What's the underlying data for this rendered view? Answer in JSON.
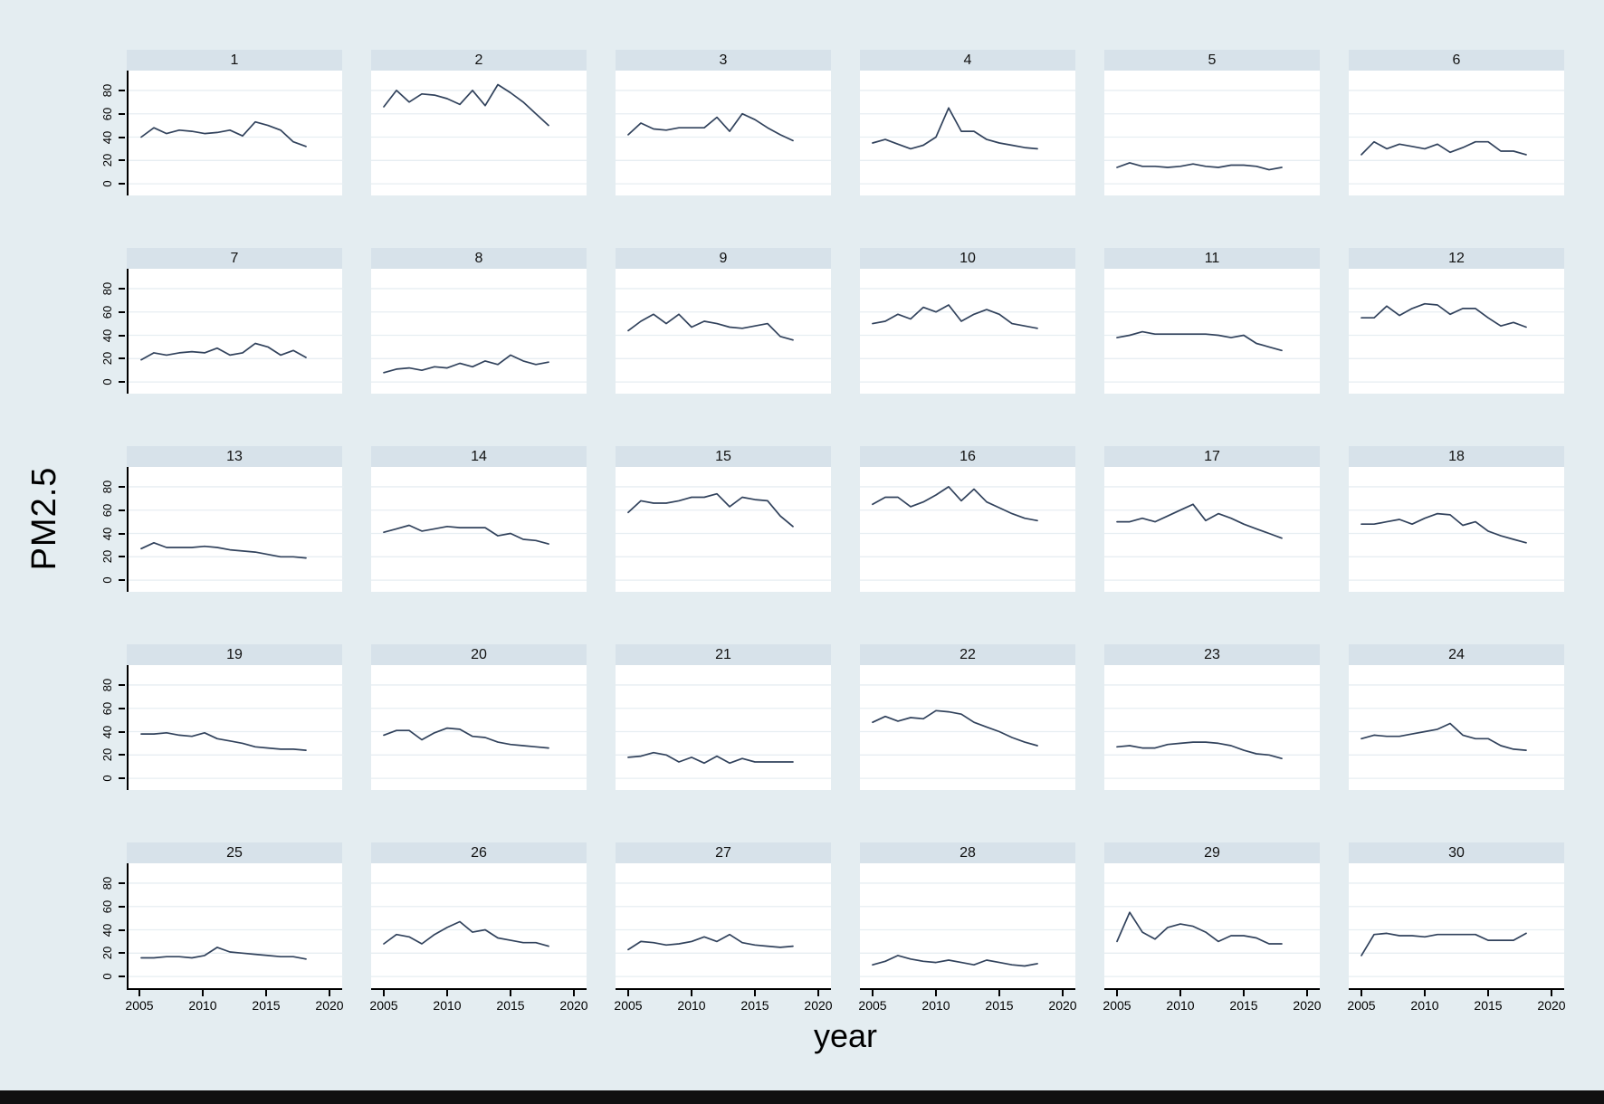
{
  "colors": {
    "background": "#e4edf1",
    "panel_header": "#d7e2ea",
    "plot_background": "#ffffff",
    "gridline": "#e7eef2",
    "line": "#31425c",
    "axis": "#000000",
    "bottom_bar": "#101010"
  },
  "chart_data": {
    "type": "line",
    "layout": "small-multiples grid, 5 rows x 6 columns, shared axes",
    "title": "",
    "xlabel": "year",
    "ylabel": "PM2.5",
    "x": [
      2005,
      2006,
      2007,
      2008,
      2009,
      2010,
      2011,
      2012,
      2013,
      2014,
      2015,
      2016,
      2017,
      2018
    ],
    "x_ticks": [
      2005,
      2010,
      2015,
      2020
    ],
    "y_ticks": [
      0,
      20,
      40,
      60,
      80
    ],
    "xlim": [
      2004,
      2021
    ],
    "ylim": [
      0,
      90
    ],
    "grid": true,
    "legend": "none",
    "panels": [
      {
        "label": "1",
        "values": [
          40,
          48,
          43,
          46,
          45,
          43,
          44,
          46,
          41,
          53,
          50,
          46,
          36,
          32
        ]
      },
      {
        "label": "2",
        "values": [
          66,
          80,
          70,
          77,
          76,
          73,
          68,
          80,
          67,
          85,
          78,
          70,
          60,
          50
        ]
      },
      {
        "label": "3",
        "values": [
          42,
          52,
          47,
          46,
          48,
          48,
          48,
          57,
          45,
          60,
          55,
          48,
          42,
          37
        ]
      },
      {
        "label": "4",
        "values": [
          35,
          38,
          34,
          30,
          33,
          40,
          65,
          45,
          45,
          38,
          35,
          33,
          31,
          30
        ]
      },
      {
        "label": "5",
        "values": [
          14,
          18,
          15,
          15,
          14,
          15,
          17,
          15,
          14,
          16,
          16,
          15,
          12,
          14
        ]
      },
      {
        "label": "6",
        "values": [
          25,
          36,
          30,
          34,
          32,
          30,
          34,
          27,
          31,
          36,
          36,
          28,
          28,
          25
        ]
      },
      {
        "label": "7",
        "values": [
          19,
          25,
          23,
          25,
          26,
          25,
          29,
          23,
          25,
          33,
          30,
          23,
          27,
          21
        ]
      },
      {
        "label": "8",
        "values": [
          8,
          11,
          12,
          10,
          13,
          12,
          16,
          13,
          18,
          15,
          23,
          18,
          15,
          17
        ]
      },
      {
        "label": "9",
        "values": [
          44,
          52,
          58,
          50,
          58,
          47,
          52,
          50,
          47,
          46,
          48,
          50,
          39,
          36
        ]
      },
      {
        "label": "10",
        "values": [
          50,
          52,
          58,
          54,
          64,
          60,
          66,
          52,
          58,
          62,
          58,
          50,
          48,
          46
        ]
      },
      {
        "label": "11",
        "values": [
          38,
          40,
          43,
          41,
          41,
          41,
          41,
          41,
          40,
          38,
          40,
          33,
          30,
          27
        ]
      },
      {
        "label": "12",
        "values": [
          55,
          55,
          65,
          57,
          63,
          67,
          66,
          58,
          63,
          63,
          55,
          48,
          51,
          47
        ]
      },
      {
        "label": "13",
        "values": [
          27,
          32,
          28,
          28,
          28,
          29,
          28,
          26,
          25,
          24,
          22,
          20,
          20,
          19
        ]
      },
      {
        "label": "14",
        "values": [
          41,
          44,
          47,
          42,
          44,
          46,
          45,
          45,
          45,
          38,
          40,
          35,
          34,
          31
        ]
      },
      {
        "label": "15",
        "values": [
          58,
          68,
          66,
          66,
          68,
          71,
          71,
          74,
          63,
          71,
          69,
          68,
          55,
          46
        ]
      },
      {
        "label": "16",
        "values": [
          65,
          71,
          71,
          63,
          67,
          73,
          80,
          68,
          78,
          67,
          62,
          57,
          53,
          51
        ]
      },
      {
        "label": "17",
        "values": [
          50,
          50,
          53,
          50,
          55,
          60,
          65,
          51,
          57,
          53,
          48,
          44,
          40,
          36
        ]
      },
      {
        "label": "18",
        "values": [
          48,
          48,
          50,
          52,
          48,
          53,
          57,
          56,
          47,
          50,
          42,
          38,
          35,
          32
        ]
      },
      {
        "label": "19",
        "values": [
          38,
          38,
          39,
          37,
          36,
          39,
          34,
          32,
          30,
          27,
          26,
          25,
          25,
          24
        ]
      },
      {
        "label": "20",
        "values": [
          37,
          41,
          41,
          33,
          39,
          43,
          42,
          36,
          35,
          31,
          29,
          28,
          27,
          26
        ]
      },
      {
        "label": "21",
        "values": [
          18,
          19,
          22,
          20,
          14,
          18,
          13,
          19,
          13,
          17,
          14,
          14,
          14,
          14
        ]
      },
      {
        "label": "22",
        "values": [
          48,
          53,
          49,
          52,
          51,
          58,
          57,
          55,
          48,
          44,
          40,
          35,
          31,
          28
        ]
      },
      {
        "label": "23",
        "values": [
          27,
          28,
          26,
          26,
          29,
          30,
          31,
          31,
          30,
          28,
          24,
          21,
          20,
          17
        ]
      },
      {
        "label": "24",
        "values": [
          34,
          37,
          36,
          36,
          38,
          40,
          42,
          47,
          37,
          34,
          34,
          28,
          25,
          24
        ]
      },
      {
        "label": "25",
        "values": [
          16,
          16,
          17,
          17,
          16,
          18,
          25,
          21,
          20,
          19,
          18,
          17,
          17,
          15
        ]
      },
      {
        "label": "26",
        "values": [
          28,
          36,
          34,
          28,
          36,
          42,
          47,
          38,
          40,
          33,
          31,
          29,
          29,
          26
        ]
      },
      {
        "label": "27",
        "values": [
          23,
          30,
          29,
          27,
          28,
          30,
          34,
          30,
          36,
          29,
          27,
          26,
          25,
          26
        ]
      },
      {
        "label": "28",
        "values": [
          10,
          13,
          18,
          15,
          13,
          12,
          14,
          12,
          10,
          14,
          12,
          10,
          9,
          11
        ]
      },
      {
        "label": "29",
        "values": [
          30,
          55,
          38,
          32,
          42,
          45,
          43,
          38,
          30,
          35,
          35,
          33,
          28,
          28
        ]
      },
      {
        "label": "30",
        "values": [
          18,
          36,
          37,
          35,
          35,
          34,
          36,
          36,
          36,
          36,
          31,
          31,
          31,
          37
        ]
      }
    ]
  }
}
